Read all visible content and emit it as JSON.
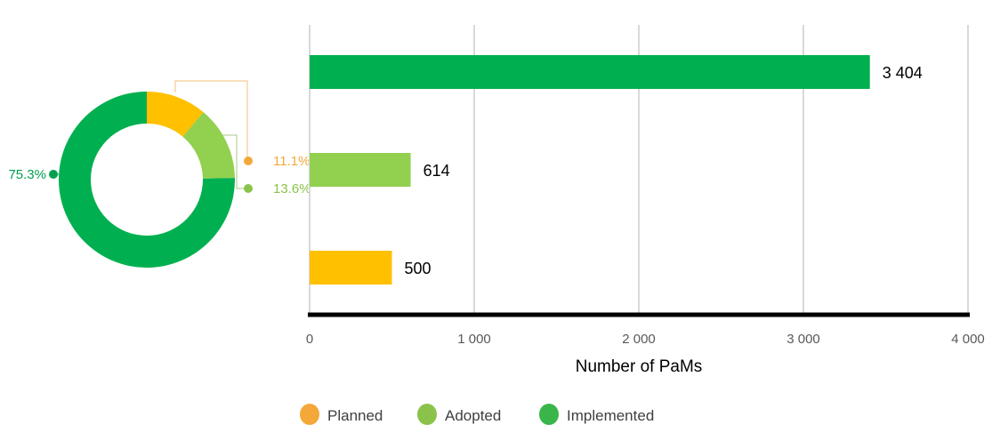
{
  "colors": {
    "planned": "#FFC000",
    "adopted": "#92D050",
    "implemented": "#00B050",
    "planned_label": "#F4A83A",
    "adopted_label": "#8BC34A",
    "implemented_label": "#00A050"
  },
  "chart_data": [
    {
      "type": "pie",
      "variant": "donut",
      "slices": [
        {
          "name": "Planned",
          "value": 11.1,
          "label": "11.1%"
        },
        {
          "name": "Adopted",
          "value": 13.6,
          "label": "13.6%"
        },
        {
          "name": "Implemented",
          "value": 75.3,
          "label": "75.3%"
        }
      ]
    },
    {
      "type": "bar",
      "orientation": "horizontal",
      "categories": [
        "Implemented",
        "Adopted",
        "Planned"
      ],
      "values": [
        3404,
        614,
        500
      ],
      "data_labels": [
        "3 404",
        "614",
        "500"
      ],
      "xlabel": "Number of PaMs",
      "xlim": [
        0,
        4000
      ],
      "xticks": [
        0,
        1000,
        2000,
        3000,
        4000
      ],
      "xtick_labels": [
        "0",
        "1 000",
        "2 000",
        "3 000",
        "4 000"
      ],
      "grid": true
    }
  ],
  "legend": {
    "position": "bottom",
    "items": [
      {
        "label": "Planned",
        "color": "#F4A83A"
      },
      {
        "label": "Adopted",
        "color": "#8BC34A"
      },
      {
        "label": "Implemented",
        "color": "#39B54A"
      }
    ]
  }
}
